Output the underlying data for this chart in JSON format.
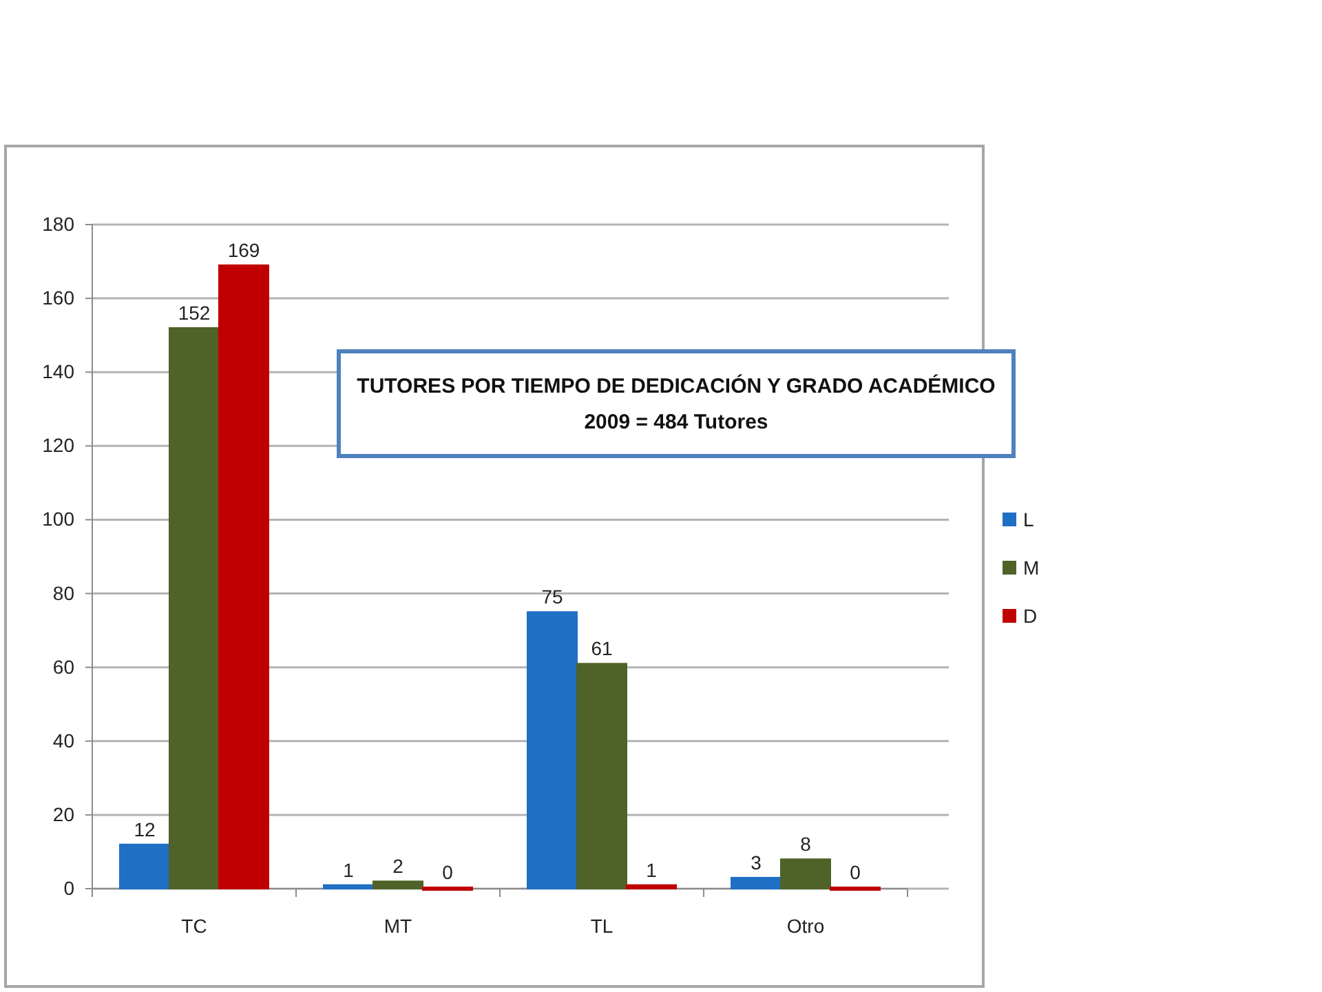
{
  "chart_data": {
    "type": "bar",
    "title": "TUTORES POR TIEMPO DE DEDICACIÓN Y GRADO ACADÉMICO",
    "subtitle": "2009 = 484 Tutores",
    "categories": [
      "TC",
      "MT",
      "TL",
      "Otro"
    ],
    "series": [
      {
        "name": "L",
        "color": "#1f6fc5",
        "values": [
          12,
          1,
          75,
          3
        ]
      },
      {
        "name": "M",
        "color": "#4f6228",
        "values": [
          152,
          2,
          61,
          8
        ]
      },
      {
        "name": "D",
        "color": "#c00000",
        "values": [
          169,
          0,
          1,
          0
        ]
      }
    ],
    "ylim": [
      0,
      180
    ],
    "yticks": [
      0,
      20,
      40,
      60,
      80,
      100,
      120,
      140,
      160,
      180
    ],
    "grid": "y",
    "legend": "right",
    "data_labels": true
  }
}
